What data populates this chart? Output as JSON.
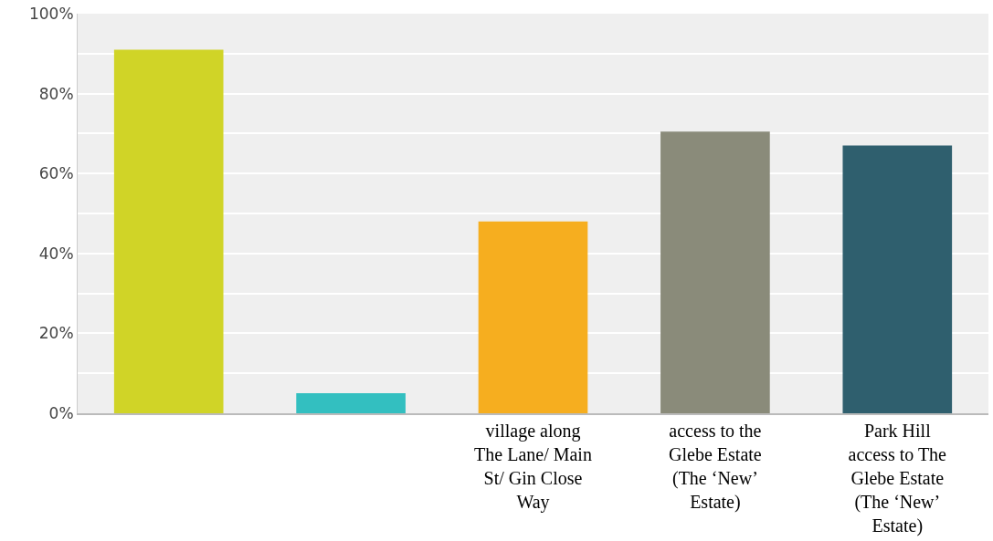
{
  "chart_data": {
    "type": "bar",
    "categories": [
      null,
      null,
      "village along The Lane/ Main St/ Gin Close Way",
      "access to the Glebe Estate (The ‘New’ Estate)",
      "Park Hill access to The Glebe Estate (The ‘New’ Estate)"
    ],
    "values": [
      91,
      5,
      48,
      70.5,
      67
    ],
    "colors": [
      "#d0d427",
      "#33bfc0",
      "#f6ae1f",
      "#8a8b7a",
      "#2f5f6e"
    ],
    "ylim": [
      0,
      100
    ],
    "yticks": [
      {
        "value": 0,
        "label": "0%"
      },
      {
        "value": 10,
        "label": null
      },
      {
        "value": 20,
        "label": "20%"
      },
      {
        "value": 30,
        "label": null
      },
      {
        "value": 40,
        "label": "40%"
      },
      {
        "value": 50,
        "label": null
      },
      {
        "value": 60,
        "label": "60%"
      },
      {
        "value": 70,
        "label": null
      },
      {
        "value": 80,
        "label": "80%"
      },
      {
        "value": 90,
        "label": null
      },
      {
        "value": 100,
        "label": "100%"
      }
    ],
    "grid": "y"
  }
}
